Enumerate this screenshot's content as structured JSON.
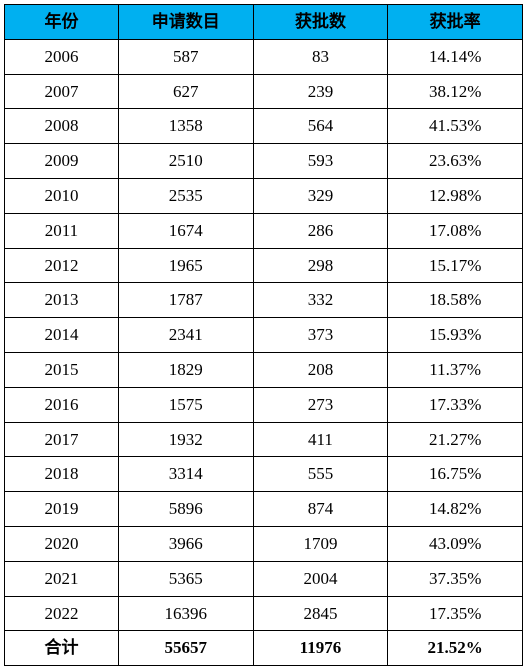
{
  "table": {
    "header_bg": "#00b0f0",
    "border_color": "#000000",
    "columns": [
      {
        "label": "年份",
        "key": "year"
      },
      {
        "label": "申请数目",
        "key": "applications"
      },
      {
        "label": "获批数",
        "key": "approvals"
      },
      {
        "label": "获批率",
        "key": "rate"
      }
    ],
    "rows": [
      {
        "year": "2006",
        "applications": "587",
        "approvals": "83",
        "rate": "14.14%"
      },
      {
        "year": "2007",
        "applications": "627",
        "approvals": "239",
        "rate": "38.12%"
      },
      {
        "year": "2008",
        "applications": "1358",
        "approvals": "564",
        "rate": "41.53%"
      },
      {
        "year": "2009",
        "applications": "2510",
        "approvals": "593",
        "rate": "23.63%"
      },
      {
        "year": "2010",
        "applications": "2535",
        "approvals": "329",
        "rate": "12.98%"
      },
      {
        "year": "2011",
        "applications": "1674",
        "approvals": "286",
        "rate": "17.08%"
      },
      {
        "year": "2012",
        "applications": "1965",
        "approvals": "298",
        "rate": "15.17%"
      },
      {
        "year": "2013",
        "applications": "1787",
        "approvals": "332",
        "rate": "18.58%"
      },
      {
        "year": "2014",
        "applications": "2341",
        "approvals": "373",
        "rate": "15.93%"
      },
      {
        "year": "2015",
        "applications": "1829",
        "approvals": "208",
        "rate": "11.37%"
      },
      {
        "year": "2016",
        "applications": "1575",
        "approvals": "273",
        "rate": "17.33%"
      },
      {
        "year": "2017",
        "applications": "1932",
        "approvals": "411",
        "rate": "21.27%"
      },
      {
        "year": "2018",
        "applications": "3314",
        "approvals": "555",
        "rate": "16.75%"
      },
      {
        "year": "2019",
        "applications": "5896",
        "approvals": "874",
        "rate": "14.82%"
      },
      {
        "year": "2020",
        "applications": "3966",
        "approvals": "1709",
        "rate": "43.09%"
      },
      {
        "year": "2021",
        "applications": "5365",
        "approvals": "2004",
        "rate": "37.35%"
      },
      {
        "year": "2022",
        "applications": "16396",
        "approvals": "2845",
        "rate": "17.35%"
      }
    ],
    "total": {
      "year": "合计",
      "applications": "55657",
      "approvals": "11976",
      "rate": "21.52%"
    }
  }
}
